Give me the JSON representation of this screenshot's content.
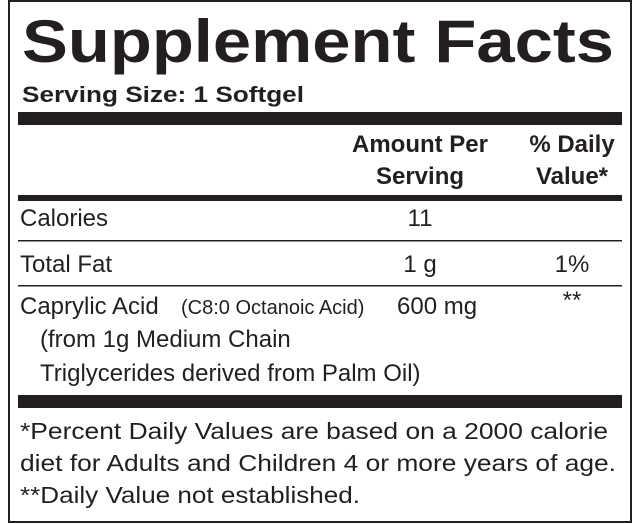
{
  "title": "Supplement Facts",
  "serving_size": "Serving Size: 1 Softgel",
  "table": {
    "header": {
      "amount": [
        "Amount Per",
        "Serving"
      ],
      "daily_value": [
        "% Daily",
        "Value*"
      ]
    },
    "rows": [
      {
        "name": "Calories",
        "amount": "11"
      },
      {
        "name": "Total Fat",
        "amount": "1 g",
        "daily_value": "1%"
      },
      {
        "name": "Caprylic Acid",
        "note": "(C8:0 Octanoic Acid)",
        "amount": "600 mg",
        "daily_value": "**",
        "detail": [
          "(from 1g Medium Chain",
          "Triglycerides derived from Palm Oil)"
        ]
      }
    ]
  },
  "footnotes": [
    "*Percent Daily Values are based on a 2000 calorie",
    "diet for Adults and Children 4 or more years of age.",
    "**Daily Value not established."
  ]
}
